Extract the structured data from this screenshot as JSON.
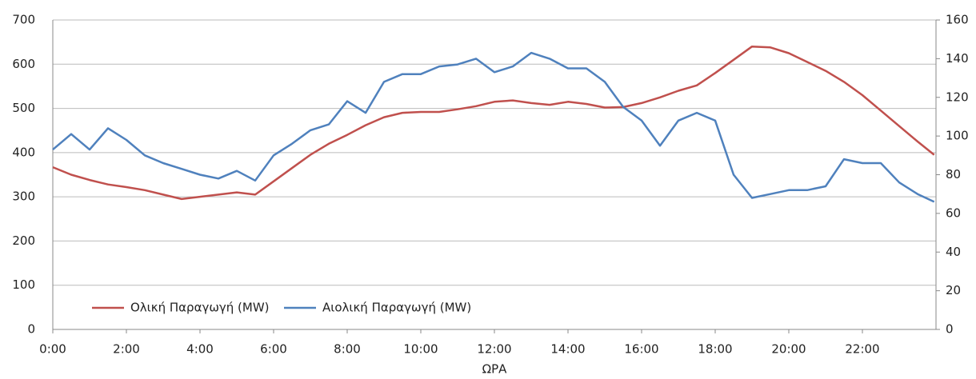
{
  "chart_data": {
    "type": "line",
    "xlabel": "ΩΡΑ",
    "x": [
      0,
      0.5,
      1,
      1.5,
      2,
      2.5,
      3,
      3.5,
      4,
      4.5,
      5,
      5.5,
      6,
      6.5,
      7,
      7.5,
      8,
      8.5,
      9,
      9.5,
      10,
      10.5,
      11,
      11.5,
      12,
      12.5,
      13,
      13.5,
      14,
      14.5,
      15,
      15.5,
      16,
      16.5,
      17,
      17.5,
      18,
      18.5,
      19,
      19.5,
      20,
      20.5,
      21,
      21.5,
      22,
      22.5,
      23,
      23.5,
      23.95
    ],
    "xlim": [
      0,
      24
    ],
    "xticks": [
      {
        "value": 0,
        "label": "0:00"
      },
      {
        "value": 2,
        "label": "2:00"
      },
      {
        "value": 4,
        "label": "4:00"
      },
      {
        "value": 6,
        "label": "6:00"
      },
      {
        "value": 8,
        "label": "8:00"
      },
      {
        "value": 10,
        "label": "10:00"
      },
      {
        "value": 12,
        "label": "12:00"
      },
      {
        "value": 14,
        "label": "14:00"
      },
      {
        "value": 16,
        "label": "16:00"
      },
      {
        "value": 18,
        "label": "18:00"
      },
      {
        "value": 20,
        "label": "20:00"
      },
      {
        "value": 22,
        "label": "22:00"
      }
    ],
    "ylim": [
      0,
      700
    ],
    "yticks": [
      0,
      100,
      200,
      300,
      400,
      500,
      600,
      700
    ],
    "y2lim": [
      0,
      160
    ],
    "y2ticks": [
      0,
      20,
      40,
      60,
      80,
      100,
      120,
      140,
      160
    ],
    "grid": true,
    "legend": "lower left",
    "series": [
      {
        "name": "Ολική Παραγωγή (MW)",
        "color": "#c0504d",
        "values": [
          367,
          350,
          338,
          328,
          322,
          315,
          305,
          295,
          300,
          305,
          310,
          305,
          335,
          365,
          395,
          420,
          440,
          462,
          480,
          490,
          492,
          492,
          498,
          505,
          515,
          518,
          512,
          508,
          515,
          510,
          502,
          503,
          512,
          525,
          540,
          552,
          580,
          610,
          640,
          638,
          625,
          605,
          585,
          560,
          530,
          495,
          460,
          425,
          395
        ]
      },
      {
        "name": "Αιολική Παραγωγή (MW)",
        "color": "#4f81bd",
        "axis": "y2",
        "values": [
          93,
          101,
          93,
          104,
          98,
          90,
          86,
          83,
          80,
          78,
          82,
          77,
          90,
          96,
          103,
          106,
          118,
          112,
          128,
          132,
          132,
          136,
          137,
          140,
          133,
          136,
          143,
          140,
          135,
          135,
          128,
          115,
          108,
          95,
          108,
          112,
          108,
          80,
          68,
          70,
          72,
          72,
          74,
          88,
          86,
          86,
          76,
          70,
          66
        ]
      }
    ]
  }
}
